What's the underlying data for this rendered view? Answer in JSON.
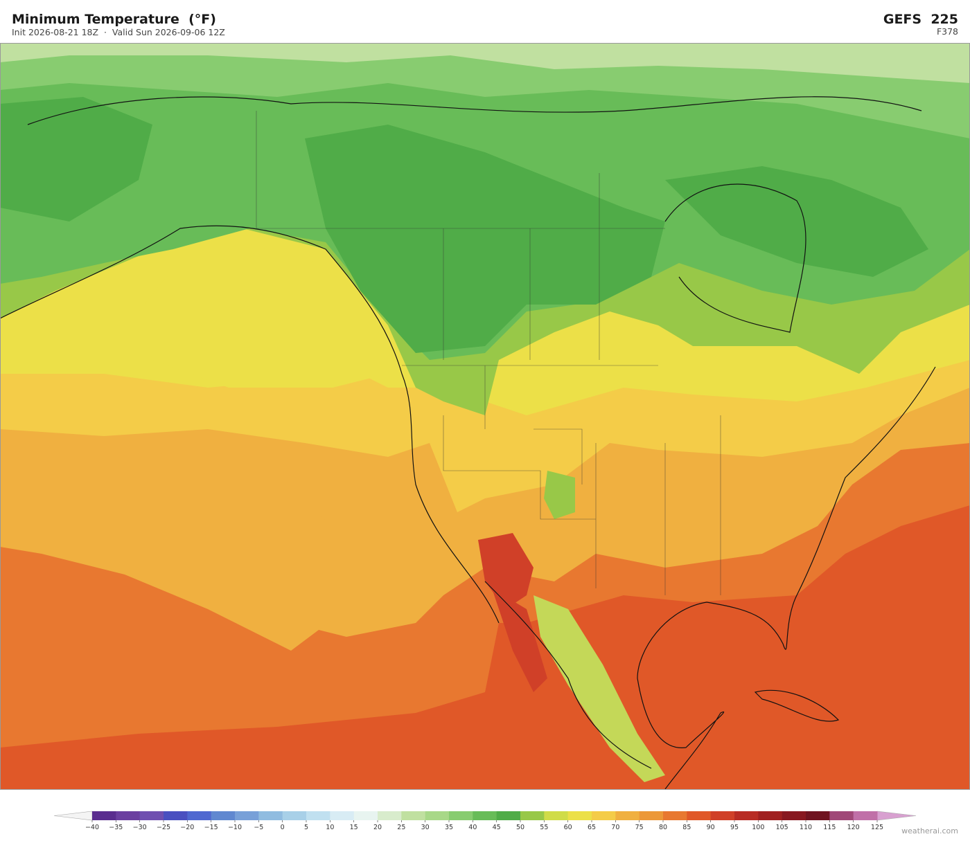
{
  "header": {
    "title": "Minimum Temperature  (°F)",
    "subtitle": "Init 2026-08-21 18Z  ·  Valid Sun 2026-09-06 12Z",
    "model": "GEFS  225",
    "forecast_hour": "F378"
  },
  "colorbar": {
    "ticks": [
      {
        "value": -40,
        "label": "−40"
      },
      {
        "value": -35,
        "label": "−35"
      },
      {
        "value": -30,
        "label": "−30"
      },
      {
        "value": -25,
        "label": "−25"
      },
      {
        "value": -20,
        "label": "−20"
      },
      {
        "value": -15,
        "label": "−15"
      },
      {
        "value": -10,
        "label": "−10"
      },
      {
        "value": -5,
        "label": "−5"
      },
      0,
      5,
      10,
      15,
      20,
      25,
      30,
      35,
      40,
      45,
      50,
      55,
      60,
      65,
      70,
      75,
      80,
      85,
      90,
      95,
      100,
      105,
      110,
      115,
      120,
      125
    ],
    "colors": [
      "#5a2d8f",
      "#6b3fa0",
      "#7050b0",
      "#4a50c0",
      "#5068d0",
      "#6088d0",
      "#78a0d8",
      "#90bce0",
      "#a8d0e8",
      "#c0e0f0",
      "#d8ecf4",
      "#e8f4f0",
      "#d8eccc",
      "#c0e0a0",
      "#a8d888",
      "#88cc70",
      "#68bc58",
      "#50ac48",
      "#98c848",
      "#d0dc48",
      "#ece048",
      "#f4cc48",
      "#f0b040",
      "#ec9838",
      "#e87830",
      "#e05828",
      "#d04028",
      "#b82c24",
      "#a02020",
      "#881820",
      "#701420",
      "#a04878",
      "#c070a8"
    ],
    "under_color": "#f4f4f4",
    "over_color": "#d8a0d0"
  },
  "footer": {
    "credit": "weatherai.com"
  }
}
